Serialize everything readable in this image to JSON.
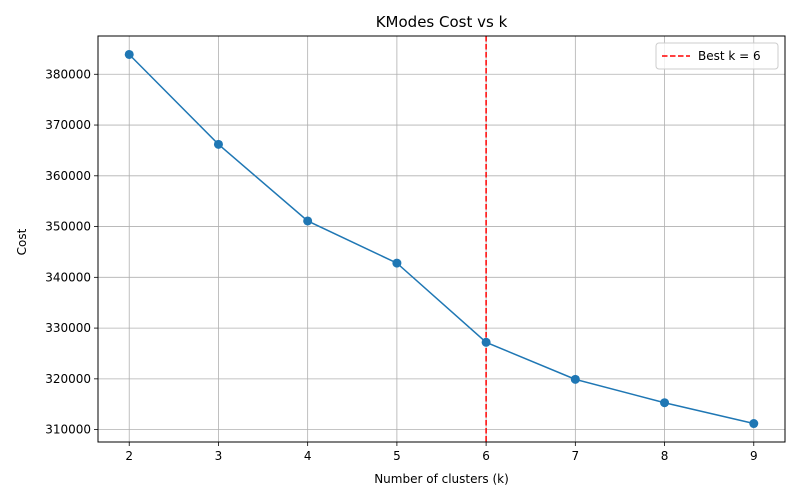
{
  "chart_data": {
    "type": "line",
    "title": "KModes Cost vs k",
    "xlabel": "Number of clusters (k)",
    "ylabel": "Cost",
    "x": [
      2,
      3,
      4,
      5,
      6,
      7,
      8,
      9
    ],
    "series": [
      {
        "values": [
          383900,
          366200,
          351100,
          342800,
          327200,
          319900,
          315300,
          311200
        ],
        "color": "#1f77b4",
        "marker": "circle"
      }
    ],
    "reference_line": {
      "orientation": "vertical",
      "x": 6,
      "label": "Best k = 6",
      "color": "#ff0000",
      "style": "dashed"
    },
    "xticks": [
      2,
      3,
      4,
      5,
      6,
      7,
      8,
      9
    ],
    "yticks": [
      310000,
      320000,
      330000,
      340000,
      350000,
      360000,
      370000,
      380000
    ],
    "xlim": [
      1.65,
      9.35
    ],
    "ylim": [
      307560,
      387540
    ],
    "grid": true,
    "legend_position": "top-right"
  }
}
